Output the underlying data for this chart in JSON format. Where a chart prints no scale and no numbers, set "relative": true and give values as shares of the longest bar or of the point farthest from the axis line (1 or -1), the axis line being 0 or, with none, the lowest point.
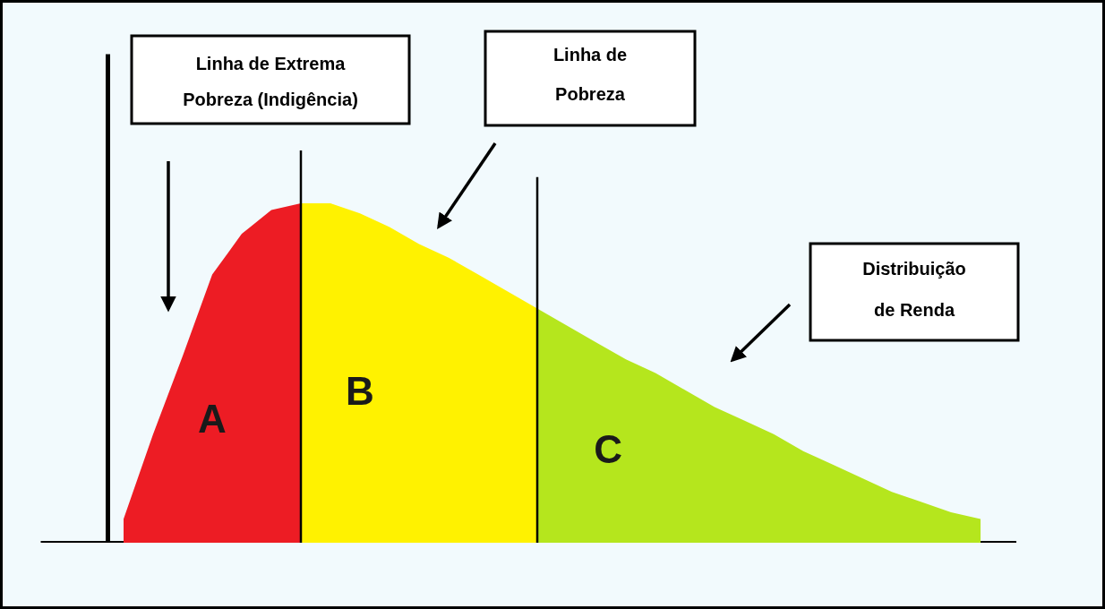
{
  "chart_data": {
    "type": "area",
    "relative": true,
    "categories": [
      null,
      null,
      null,
      null,
      null,
      null,
      null,
      null,
      null,
      null,
      null,
      null,
      null,
      null,
      null,
      null,
      null,
      null,
      null,
      null,
      null,
      null,
      null,
      null,
      null,
      null,
      null,
      null,
      null,
      null
    ],
    "series": [
      {
        "name": "A",
        "color": "#ed1c24",
        "values": [
          0.07,
          0.32,
          0.55,
          0.79,
          0.91,
          0.98,
          1.0,
          null,
          null,
          null,
          null,
          null,
          null,
          null,
          null,
          null,
          null,
          null,
          null,
          null,
          null,
          null,
          null,
          null,
          null,
          null,
          null,
          null,
          null,
          null
        ]
      },
      {
        "name": "B",
        "color": "#fff200",
        "values": [
          null,
          null,
          null,
          null,
          null,
          null,
          1.0,
          1.0,
          0.97,
          0.93,
          0.88,
          0.84,
          0.79,
          0.74,
          0.69,
          null,
          null,
          null,
          null,
          null,
          null,
          null,
          null,
          null,
          null,
          null,
          null,
          null,
          null,
          null
        ]
      },
      {
        "name": "C",
        "color": "#b5e61d",
        "values": [
          null,
          null,
          null,
          null,
          null,
          null,
          null,
          null,
          null,
          null,
          null,
          null,
          null,
          null,
          0.69,
          0.64,
          0.59,
          0.54,
          0.5,
          0.45,
          0.4,
          0.36,
          0.32,
          0.27,
          0.23,
          0.19,
          0.15,
          0.12,
          0.09,
          0.07
        ]
      }
    ],
    "annotations": [
      "Linha de Extrema Pobreza (Indigência)",
      "Linha de Pobreza",
      "Distribuição de Renda"
    ]
  }
}
